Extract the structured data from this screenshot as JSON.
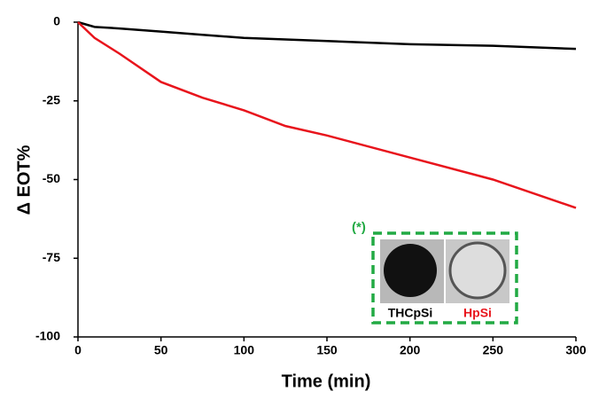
{
  "chart_data": {
    "type": "line",
    "xlabel": "Time (min)",
    "ylabel": "Δ EOT%",
    "x": [
      0,
      10,
      25,
      50,
      75,
      100,
      125,
      150,
      200,
      250,
      300
    ],
    "series": [
      {
        "name": "THCpSi",
        "color": "#000000",
        "values": [
          0,
          -1.5,
          -2,
          -3,
          -4,
          -5,
          -5.5,
          -6,
          -7,
          -7.5,
          -8.5
        ]
      },
      {
        "name": "HpSi",
        "color": "#e8141c",
        "values": [
          0,
          -5,
          -10,
          -19,
          -24,
          -28,
          -33,
          -36,
          -43,
          -50,
          -59
        ]
      }
    ],
    "xlim": [
      0,
      300
    ],
    "xticks": [
      0,
      50,
      100,
      150,
      200,
      250,
      300
    ],
    "ylim": [
      -100,
      0
    ],
    "yticks": [
      0,
      -25,
      -50,
      -75,
      -100
    ],
    "grid": false,
    "annotation": "(*)",
    "annotation_color": "#22aa44"
  }
}
